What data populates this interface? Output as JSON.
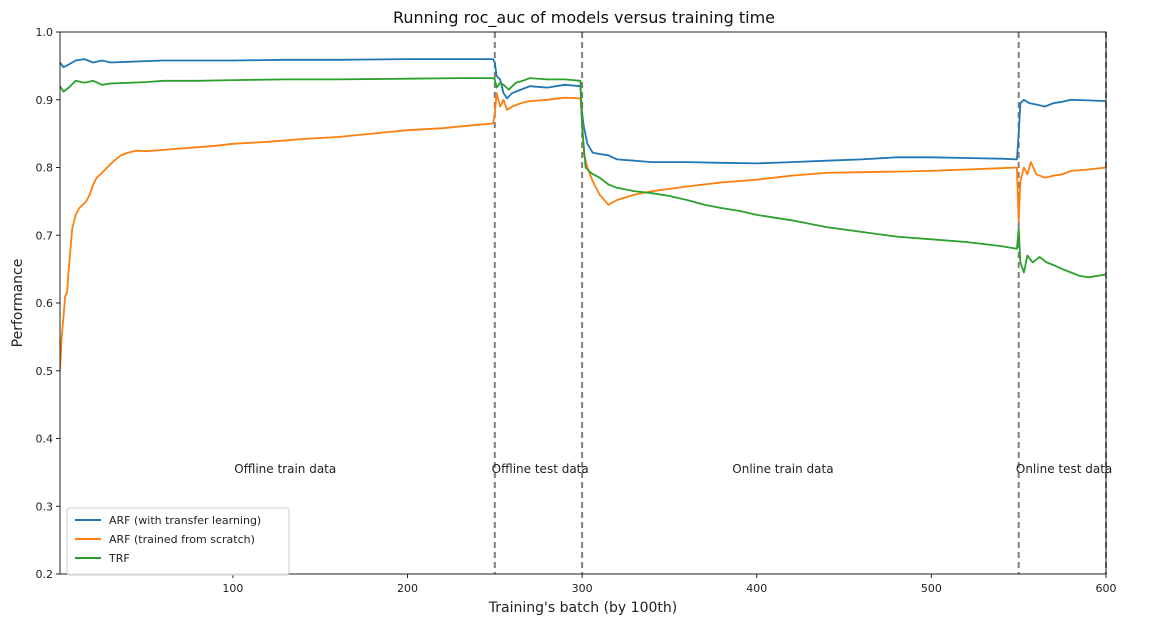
{
  "chart_data": {
    "type": "line",
    "title": "Running roc_auc of models versus training time",
    "xlabel": "Training's batch (by 100th)",
    "ylabel": "Performance",
    "xlim": [
      1,
      600
    ],
    "ylim": [
      0.2,
      1.0
    ],
    "xticks": [
      100,
      200,
      300,
      400,
      500,
      600
    ],
    "yticks": [
      0.2,
      0.3,
      0.4,
      0.5,
      0.6,
      0.7,
      0.8,
      0.9,
      1.0
    ],
    "legend_position": "lower-left",
    "grid": false,
    "vlines": [
      250,
      300,
      550,
      600
    ],
    "annotations": [
      {
        "text": "Offline train data",
        "x": 130,
        "y": 0.355
      },
      {
        "text": "Offline test data",
        "x": 276,
        "y": 0.355
      },
      {
        "text": "Online train data",
        "x": 415,
        "y": 0.355
      },
      {
        "text": "Online test data",
        "x": 576,
        "y": 0.355
      }
    ],
    "series": [
      {
        "name": "ARF (with transfer learning)",
        "color": "#1f77b4",
        "points": [
          [
            1,
            0.955
          ],
          [
            3,
            0.948
          ],
          [
            6,
            0.952
          ],
          [
            10,
            0.958
          ],
          [
            15,
            0.96
          ],
          [
            20,
            0.955
          ],
          [
            25,
            0.958
          ],
          [
            30,
            0.955
          ],
          [
            40,
            0.956
          ],
          [
            50,
            0.957
          ],
          [
            60,
            0.958
          ],
          [
            80,
            0.958
          ],
          [
            100,
            0.958
          ],
          [
            130,
            0.959
          ],
          [
            160,
            0.959
          ],
          [
            200,
            0.96
          ],
          [
            230,
            0.96
          ],
          [
            249,
            0.96
          ],
          [
            250,
            0.955
          ],
          [
            251,
            0.935
          ],
          [
            253,
            0.93
          ],
          [
            255,
            0.91
          ],
          [
            257,
            0.902
          ],
          [
            260,
            0.91
          ],
          [
            265,
            0.915
          ],
          [
            270,
            0.92
          ],
          [
            280,
            0.918
          ],
          [
            290,
            0.922
          ],
          [
            299,
            0.92
          ],
          [
            300,
            0.88
          ],
          [
            301,
            0.86
          ],
          [
            303,
            0.835
          ],
          [
            306,
            0.822
          ],
          [
            310,
            0.82
          ],
          [
            315,
            0.818
          ],
          [
            320,
            0.812
          ],
          [
            330,
            0.81
          ],
          [
            340,
            0.808
          ],
          [
            360,
            0.808
          ],
          [
            380,
            0.807
          ],
          [
            400,
            0.806
          ],
          [
            420,
            0.808
          ],
          [
            440,
            0.81
          ],
          [
            460,
            0.812
          ],
          [
            480,
            0.815
          ],
          [
            500,
            0.815
          ],
          [
            520,
            0.814
          ],
          [
            540,
            0.813
          ],
          [
            549,
            0.812
          ],
          [
            550,
            0.85
          ],
          [
            551,
            0.895
          ],
          [
            553,
            0.9
          ],
          [
            556,
            0.895
          ],
          [
            560,
            0.893
          ],
          [
            565,
            0.89
          ],
          [
            570,
            0.895
          ],
          [
            575,
            0.897
          ],
          [
            580,
            0.9
          ],
          [
            590,
            0.899
          ],
          [
            600,
            0.898
          ]
        ]
      },
      {
        "name": "ARF (trained from scratch)",
        "color": "#ff7f0e",
        "points": [
          [
            1,
            0.5
          ],
          [
            2,
            0.55
          ],
          [
            3,
            0.58
          ],
          [
            4,
            0.61
          ],
          [
            5,
            0.615
          ],
          [
            6,
            0.65
          ],
          [
            7,
            0.68
          ],
          [
            8,
            0.71
          ],
          [
            9,
            0.72
          ],
          [
            10,
            0.73
          ],
          [
            12,
            0.74
          ],
          [
            14,
            0.745
          ],
          [
            16,
            0.75
          ],
          [
            18,
            0.76
          ],
          [
            20,
            0.775
          ],
          [
            22,
            0.785
          ],
          [
            25,
            0.792
          ],
          [
            28,
            0.8
          ],
          [
            32,
            0.81
          ],
          [
            36,
            0.818
          ],
          [
            40,
            0.822
          ],
          [
            45,
            0.825
          ],
          [
            50,
            0.824
          ],
          [
            55,
            0.825
          ],
          [
            60,
            0.826
          ],
          [
            70,
            0.828
          ],
          [
            80,
            0.83
          ],
          [
            90,
            0.832
          ],
          [
            100,
            0.835
          ],
          [
            120,
            0.838
          ],
          [
            140,
            0.842
          ],
          [
            160,
            0.845
          ],
          [
            180,
            0.85
          ],
          [
            200,
            0.855
          ],
          [
            220,
            0.858
          ],
          [
            240,
            0.863
          ],
          [
            249,
            0.865
          ],
          [
            250,
            0.88
          ],
          [
            251,
            0.91
          ],
          [
            253,
            0.89
          ],
          [
            255,
            0.9
          ],
          [
            257,
            0.885
          ],
          [
            260,
            0.89
          ],
          [
            265,
            0.895
          ],
          [
            270,
            0.898
          ],
          [
            280,
            0.9
          ],
          [
            290,
            0.903
          ],
          [
            299,
            0.902
          ],
          [
            300,
            0.87
          ],
          [
            301,
            0.82
          ],
          [
            303,
            0.8
          ],
          [
            306,
            0.78
          ],
          [
            310,
            0.76
          ],
          [
            315,
            0.745
          ],
          [
            320,
            0.752
          ],
          [
            330,
            0.76
          ],
          [
            340,
            0.765
          ],
          [
            360,
            0.772
          ],
          [
            380,
            0.778
          ],
          [
            400,
            0.782
          ],
          [
            420,
            0.788
          ],
          [
            440,
            0.792
          ],
          [
            460,
            0.793
          ],
          [
            480,
            0.794
          ],
          [
            500,
            0.795
          ],
          [
            520,
            0.797
          ],
          [
            540,
            0.799
          ],
          [
            549,
            0.8
          ],
          [
            550,
            0.72
          ],
          [
            551,
            0.78
          ],
          [
            553,
            0.8
          ],
          [
            555,
            0.79
          ],
          [
            557,
            0.808
          ],
          [
            560,
            0.79
          ],
          [
            565,
            0.785
          ],
          [
            570,
            0.788
          ],
          [
            575,
            0.79
          ],
          [
            580,
            0.795
          ],
          [
            590,
            0.797
          ],
          [
            600,
            0.8
          ]
        ]
      },
      {
        "name": "TRF",
        "color": "#2ca02c",
        "points": [
          [
            1,
            0.92
          ],
          [
            3,
            0.912
          ],
          [
            6,
            0.918
          ],
          [
            10,
            0.928
          ],
          [
            15,
            0.925
          ],
          [
            20,
            0.928
          ],
          [
            25,
            0.922
          ],
          [
            30,
            0.924
          ],
          [
            40,
            0.925
          ],
          [
            50,
            0.926
          ],
          [
            60,
            0.928
          ],
          [
            80,
            0.928
          ],
          [
            100,
            0.929
          ],
          [
            130,
            0.93
          ],
          [
            160,
            0.93
          ],
          [
            200,
            0.931
          ],
          [
            230,
            0.932
          ],
          [
            249,
            0.932
          ],
          [
            250,
            0.93
          ],
          [
            251,
            0.918
          ],
          [
            253,
            0.925
          ],
          [
            255,
            0.922
          ],
          [
            258,
            0.915
          ],
          [
            262,
            0.925
          ],
          [
            266,
            0.928
          ],
          [
            270,
            0.932
          ],
          [
            280,
            0.93
          ],
          [
            290,
            0.93
          ],
          [
            299,
            0.928
          ],
          [
            300,
            0.86
          ],
          [
            302,
            0.8
          ],
          [
            305,
            0.792
          ],
          [
            310,
            0.785
          ],
          [
            315,
            0.775
          ],
          [
            320,
            0.77
          ],
          [
            330,
            0.765
          ],
          [
            340,
            0.762
          ],
          [
            350,
            0.758
          ],
          [
            360,
            0.752
          ],
          [
            370,
            0.745
          ],
          [
            380,
            0.74
          ],
          [
            390,
            0.736
          ],
          [
            400,
            0.73
          ],
          [
            420,
            0.722
          ],
          [
            440,
            0.712
          ],
          [
            460,
            0.705
          ],
          [
            480,
            0.698
          ],
          [
            500,
            0.694
          ],
          [
            520,
            0.69
          ],
          [
            540,
            0.684
          ],
          [
            549,
            0.68
          ],
          [
            550,
            0.71
          ],
          [
            551,
            0.66
          ],
          [
            553,
            0.645
          ],
          [
            555,
            0.67
          ],
          [
            558,
            0.66
          ],
          [
            562,
            0.668
          ],
          [
            566,
            0.66
          ],
          [
            570,
            0.656
          ],
          [
            575,
            0.65
          ],
          [
            580,
            0.645
          ],
          [
            585,
            0.64
          ],
          [
            590,
            0.638
          ],
          [
            595,
            0.64
          ],
          [
            600,
            0.642
          ]
        ]
      }
    ]
  }
}
